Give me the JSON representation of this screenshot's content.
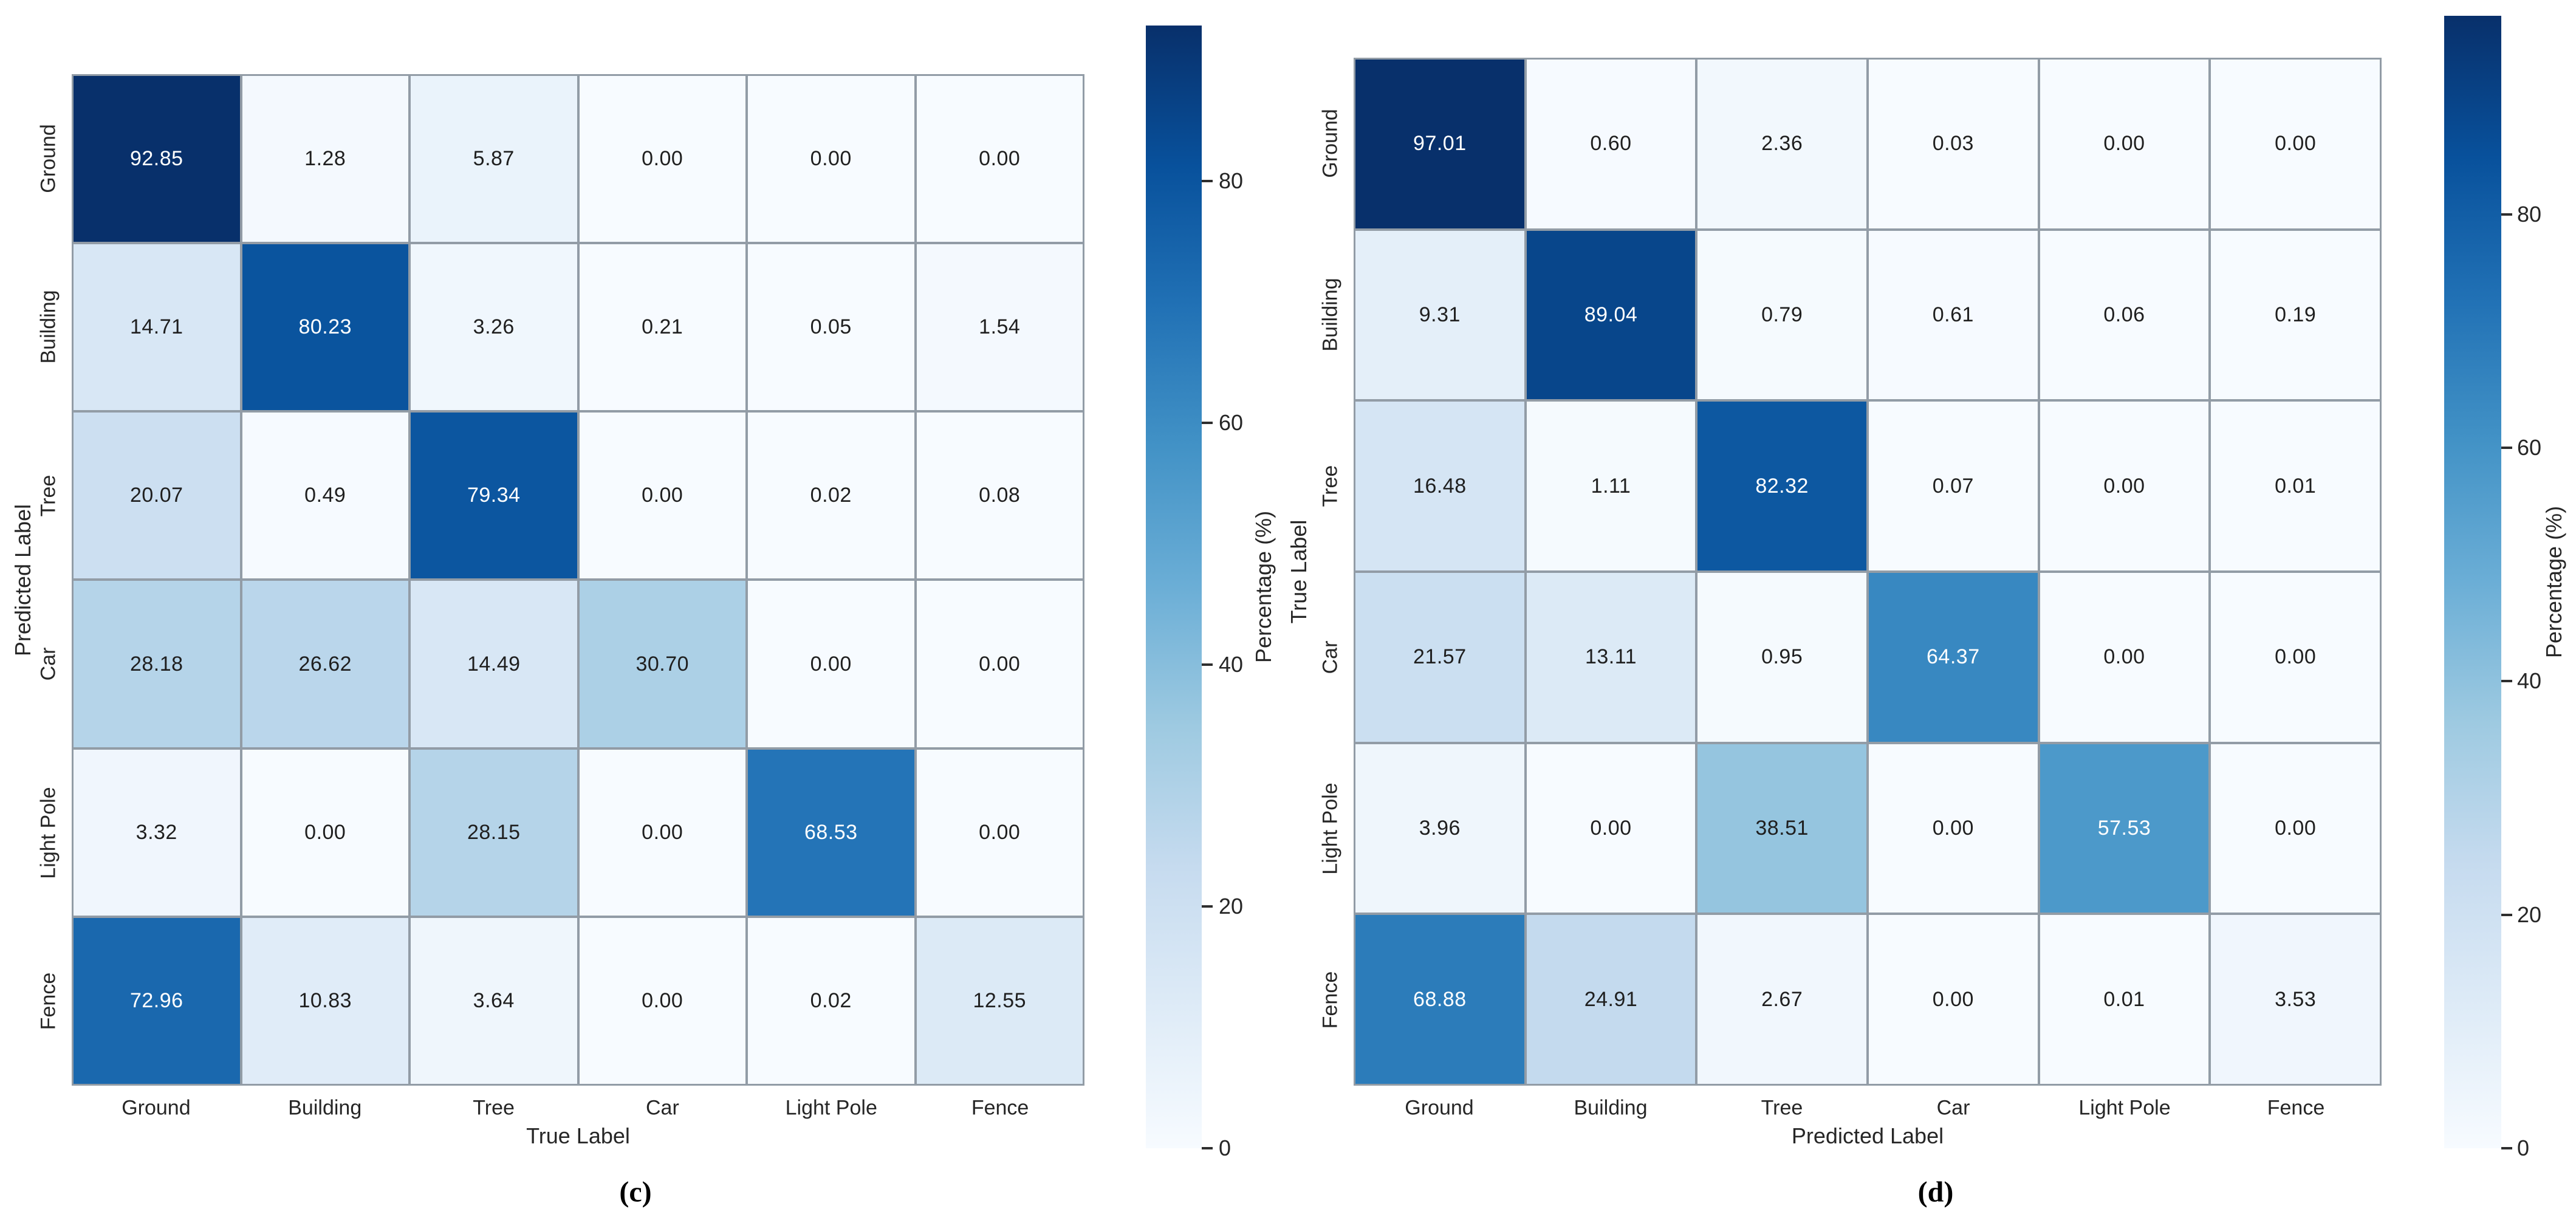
{
  "colors": {
    "background": "#ffffff",
    "gridline": "#929ca6",
    "annot_dark": "#1f1f1f",
    "annot_light": "#ffffff",
    "tick_color": "#2e2e2e",
    "blues_stops": [
      [
        0.0,
        "#f7fbff"
      ],
      [
        0.125,
        "#deebf7"
      ],
      [
        0.25,
        "#c6dbef"
      ],
      [
        0.375,
        "#9ecae1"
      ],
      [
        0.5,
        "#6baed6"
      ],
      [
        0.625,
        "#4292c6"
      ],
      [
        0.75,
        "#2171b5"
      ],
      [
        0.875,
        "#08519c"
      ],
      [
        1.0,
        "#08306b"
      ]
    ]
  },
  "chart_data": [
    {
      "type": "heatmap",
      "caption": "(c)",
      "xlabel": "True Label",
      "ylabel": "Predicted Label",
      "x_categories": [
        "Ground",
        "Building",
        "Tree",
        "Car",
        "Light Pole",
        "Fence"
      ],
      "y_categories": [
        "Ground",
        "Building",
        "Tree",
        "Car",
        "Light Pole",
        "Fence"
      ],
      "values": [
        [
          92.85,
          1.28,
          5.87,
          0.0,
          0.0,
          0.0
        ],
        [
          14.71,
          80.23,
          3.26,
          0.21,
          0.05,
          1.54
        ],
        [
          20.07,
          0.49,
          79.34,
          0.0,
          0.02,
          0.08
        ],
        [
          28.18,
          26.62,
          14.49,
          30.7,
          0.0,
          0.0
        ],
        [
          3.32,
          0.0,
          28.15,
          0.0,
          68.53,
          0.0
        ],
        [
          72.96,
          10.83,
          3.64,
          0.0,
          0.02,
          12.55
        ]
      ],
      "colormap": "Blues",
      "grid": true,
      "legend_position": "right-colorbar",
      "colorbar": {
        "label": "Percentage (%)",
        "ticks": [
          0,
          20,
          40,
          60,
          80
        ],
        "vmin": 0,
        "vmax": 92.85
      }
    },
    {
      "type": "heatmap",
      "caption": "(d)",
      "xlabel": "Predicted Label",
      "ylabel": "True Label",
      "x_categories": [
        "Ground",
        "Building",
        "Tree",
        "Car",
        "Light Pole",
        "Fence"
      ],
      "y_categories": [
        "Ground",
        "Building",
        "Tree",
        "Car",
        "Light Pole",
        "Fence"
      ],
      "values": [
        [
          97.01,
          0.6,
          2.36,
          0.03,
          0.0,
          0.0
        ],
        [
          9.31,
          89.04,
          0.79,
          0.61,
          0.06,
          0.19
        ],
        [
          16.48,
          1.11,
          82.32,
          0.07,
          0.0,
          0.01
        ],
        [
          21.57,
          13.11,
          0.95,
          64.37,
          0.0,
          0.0
        ],
        [
          3.96,
          0.0,
          38.51,
          0.0,
          57.53,
          0.0
        ],
        [
          68.88,
          24.91,
          2.67,
          0.0,
          0.01,
          3.53
        ]
      ],
      "colormap": "Blues",
      "grid": true,
      "legend_position": "right-colorbar",
      "colorbar": {
        "label": "Percentage (%)",
        "ticks": [
          0,
          20,
          40,
          60,
          80
        ],
        "vmin": 0,
        "vmax": 97.01
      }
    }
  ]
}
